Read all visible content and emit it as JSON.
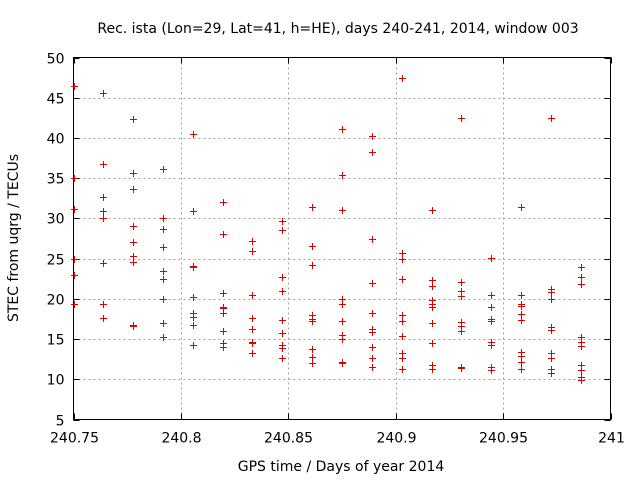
{
  "chart_data": {
    "type": "scatter",
    "title": "Rec. ista (Lon=29, Lat=41, h=HE), days 240-241, 2014, window 003",
    "xlabel": "GPS time / Days of year 2014",
    "ylabel": "STEC from uqrg / TECUs",
    "xlim": [
      240.75,
      241
    ],
    "ylim": [
      5,
      50
    ],
    "xticks": [
      240.75,
      240.8,
      240.85,
      240.9,
      240.95,
      241
    ],
    "xtick_labels": [
      "240.75",
      "240.8",
      "240.85",
      "240.9",
      "240.95",
      "241"
    ],
    "yticks": [
      5,
      10,
      15,
      20,
      25,
      30,
      35,
      40,
      45,
      50
    ],
    "ytick_labels": [
      "5",
      "10",
      "15",
      "20",
      "25",
      "30",
      "35",
      "40",
      "45",
      "50"
    ],
    "grid": true,
    "marker": "+",
    "color": "#dd0000",
    "points": [
      [
        240.75,
        46.5
      ],
      [
        240.75,
        35.0
      ],
      [
        240.75,
        31.2
      ],
      [
        240.75,
        25.0
      ],
      [
        240.75,
        23.0
      ],
      [
        240.75,
        19.3
      ],
      [
        240.7639,
        45.6
      ],
      [
        240.7639,
        36.7
      ],
      [
        240.7639,
        32.6
      ],
      [
        240.7639,
        30.9
      ],
      [
        240.7639,
        30.1
      ],
      [
        240.7639,
        24.5
      ],
      [
        240.7639,
        19.3
      ],
      [
        240.7639,
        17.6
      ],
      [
        240.7778,
        42.3
      ],
      [
        240.7778,
        35.6
      ],
      [
        240.7778,
        33.6
      ],
      [
        240.7778,
        29.1
      ],
      [
        240.7778,
        27.1
      ],
      [
        240.7778,
        25.3
      ],
      [
        240.7778,
        24.6
      ],
      [
        240.7778,
        16.8
      ],
      [
        240.7778,
        16.6
      ],
      [
        240.7917,
        36.2
      ],
      [
        240.7917,
        30.1
      ],
      [
        240.7917,
        28.7
      ],
      [
        240.7917,
        26.4
      ],
      [
        240.7917,
        23.4
      ],
      [
        240.7917,
        22.5
      ],
      [
        240.7917,
        20.0
      ],
      [
        240.7917,
        17.0
      ],
      [
        240.7917,
        15.2
      ],
      [
        240.8056,
        40.5
      ],
      [
        240.8056,
        30.9
      ],
      [
        240.8056,
        24.1
      ],
      [
        240.8056,
        24.0
      ],
      [
        240.8056,
        20.2
      ],
      [
        240.8056,
        18.3
      ],
      [
        240.8056,
        17.8
      ],
      [
        240.8056,
        16.8
      ],
      [
        240.8056,
        14.3
      ],
      [
        240.8194,
        32.0
      ],
      [
        240.8194,
        28.1
      ],
      [
        240.8194,
        20.7
      ],
      [
        240.8194,
        19.0
      ],
      [
        240.8194,
        18.8
      ],
      [
        240.8194,
        18.2
      ],
      [
        240.8194,
        16.0
      ],
      [
        240.8194,
        14.5
      ],
      [
        240.8194,
        14.0
      ],
      [
        240.8333,
        27.2
      ],
      [
        240.8333,
        26.0
      ],
      [
        240.8333,
        20.5
      ],
      [
        240.8333,
        17.6
      ],
      [
        240.8333,
        16.2
      ],
      [
        240.8333,
        14.6
      ],
      [
        240.8333,
        14.5
      ],
      [
        240.8333,
        13.3
      ],
      [
        240.8472,
        29.7
      ],
      [
        240.8472,
        28.6
      ],
      [
        240.8472,
        22.7
      ],
      [
        240.8472,
        21.0
      ],
      [
        240.8472,
        17.4
      ],
      [
        240.8472,
        15.8
      ],
      [
        240.8472,
        14.3
      ],
      [
        240.8472,
        13.9
      ],
      [
        240.8472,
        12.6
      ],
      [
        240.8611,
        31.4
      ],
      [
        240.8611,
        26.6
      ],
      [
        240.8611,
        24.2
      ],
      [
        240.8611,
        18.0
      ],
      [
        240.8611,
        17.5
      ],
      [
        240.8611,
        17.3
      ],
      [
        240.8611,
        13.8
      ],
      [
        240.8611,
        12.8
      ],
      [
        240.8611,
        12.0
      ],
      [
        240.875,
        41.1
      ],
      [
        240.875,
        35.4
      ],
      [
        240.875,
        31.0
      ],
      [
        240.875,
        20.0
      ],
      [
        240.875,
        19.4
      ],
      [
        240.875,
        17.2
      ],
      [
        240.875,
        15.5
      ],
      [
        240.875,
        15.0
      ],
      [
        240.875,
        12.1
      ],
      [
        240.875,
        12.0
      ],
      [
        240.8889,
        40.2
      ],
      [
        240.8889,
        38.3
      ],
      [
        240.8889,
        27.5
      ],
      [
        240.8889,
        22.0
      ],
      [
        240.8889,
        18.3
      ],
      [
        240.8889,
        16.2
      ],
      [
        240.8889,
        15.9
      ],
      [
        240.8889,
        14.0
      ],
      [
        240.8889,
        12.7
      ],
      [
        240.8889,
        11.5
      ],
      [
        240.9028,
        47.4
      ],
      [
        240.9028,
        25.7
      ],
      [
        240.9028,
        25.0
      ],
      [
        240.9028,
        22.5
      ],
      [
        240.9028,
        18.0
      ],
      [
        240.9028,
        17.3
      ],
      [
        240.9028,
        15.4
      ],
      [
        240.9028,
        13.3
      ],
      [
        240.9028,
        12.7
      ],
      [
        240.9028,
        11.3
      ],
      [
        240.9167,
        31.1
      ],
      [
        240.9167,
        22.4
      ],
      [
        240.9167,
        21.6
      ],
      [
        240.9167,
        19.9
      ],
      [
        240.9167,
        19.3
      ],
      [
        240.9167,
        19.0
      ],
      [
        240.9167,
        17.0
      ],
      [
        240.9167,
        14.5
      ],
      [
        240.9167,
        11.8
      ],
      [
        240.9167,
        11.3
      ],
      [
        240.9306,
        42.5
      ],
      [
        240.9306,
        22.1
      ],
      [
        240.9306,
        21.0
      ],
      [
        240.9306,
        20.4
      ],
      [
        240.9306,
        17.1
      ],
      [
        240.9306,
        16.6
      ],
      [
        240.9306,
        16.0
      ],
      [
        240.9306,
        11.5
      ],
      [
        240.9306,
        11.4
      ],
      [
        240.9444,
        25.1
      ],
      [
        240.9444,
        20.5
      ],
      [
        240.9444,
        19.0
      ],
      [
        240.9444,
        17.5
      ],
      [
        240.9444,
        17.3
      ],
      [
        240.9444,
        14.6
      ],
      [
        240.9444,
        14.2
      ],
      [
        240.9444,
        11.5
      ],
      [
        240.9444,
        11.1
      ],
      [
        240.9583,
        31.4
      ],
      [
        240.9583,
        20.5
      ],
      [
        240.9583,
        19.4
      ],
      [
        240.9583,
        19.1
      ],
      [
        240.9583,
        18.1
      ],
      [
        240.9583,
        17.4
      ],
      [
        240.9583,
        13.4
      ],
      [
        240.9583,
        12.9
      ],
      [
        240.9583,
        12.2
      ],
      [
        240.9583,
        12.1
      ],
      [
        240.9583,
        11.3
      ],
      [
        240.9722,
        42.5
      ],
      [
        240.9722,
        21.2
      ],
      [
        240.9722,
        20.9
      ],
      [
        240.9722,
        20.0
      ],
      [
        240.9722,
        16.5
      ],
      [
        240.9722,
        16.1
      ],
      [
        240.9722,
        13.3
      ],
      [
        240.9722,
        12.6
      ],
      [
        240.9722,
        11.3
      ],
      [
        240.9722,
        10.8
      ],
      [
        240.9861,
        23.9
      ],
      [
        240.9861,
        22.7
      ],
      [
        240.9861,
        21.9
      ],
      [
        240.9861,
        15.2
      ],
      [
        240.9861,
        14.6
      ],
      [
        240.9861,
        14.1
      ],
      [
        240.9861,
        11.8
      ],
      [
        240.9861,
        11.1
      ],
      [
        240.9861,
        10.3
      ],
      [
        240.9861,
        9.9
      ]
    ]
  }
}
